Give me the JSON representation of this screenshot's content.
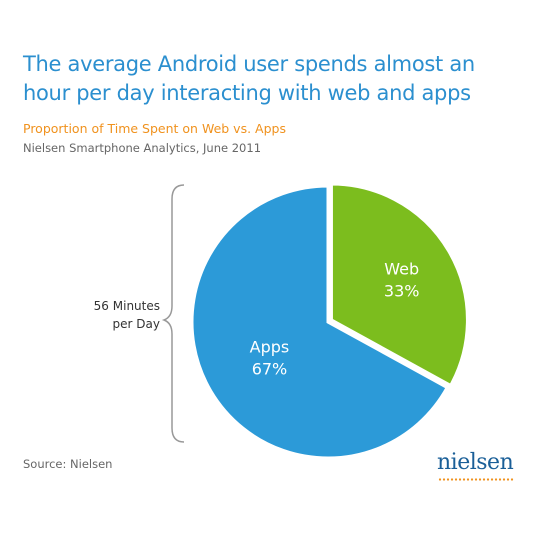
{
  "title": "The average Android user spends almost an hour per day interacting with web and apps",
  "subtitle": "Proportion of Time Spent on Web vs. Apps",
  "data_source": "Nielsen Smartphone Analytics, June 2011",
  "bracket_label": [
    "56 Minutes",
    "per Day"
  ],
  "footer": "Source: Nielsen",
  "logo_text": "nielsen",
  "colors": {
    "apps": "#2c9ad8",
    "web": "#7cbd1e",
    "title": "#2b8fcf",
    "subtitle": "#f0921e"
  },
  "chart_data": {
    "type": "pie",
    "title": "Proportion of Time Spent on Web vs. Apps",
    "slices": [
      {
        "label": "Web",
        "value": 33,
        "value_label": "33%",
        "color": "#7cbd1e"
      },
      {
        "label": "Apps",
        "value": 67,
        "value_label": "67%",
        "color": "#2c9ad8"
      }
    ]
  }
}
